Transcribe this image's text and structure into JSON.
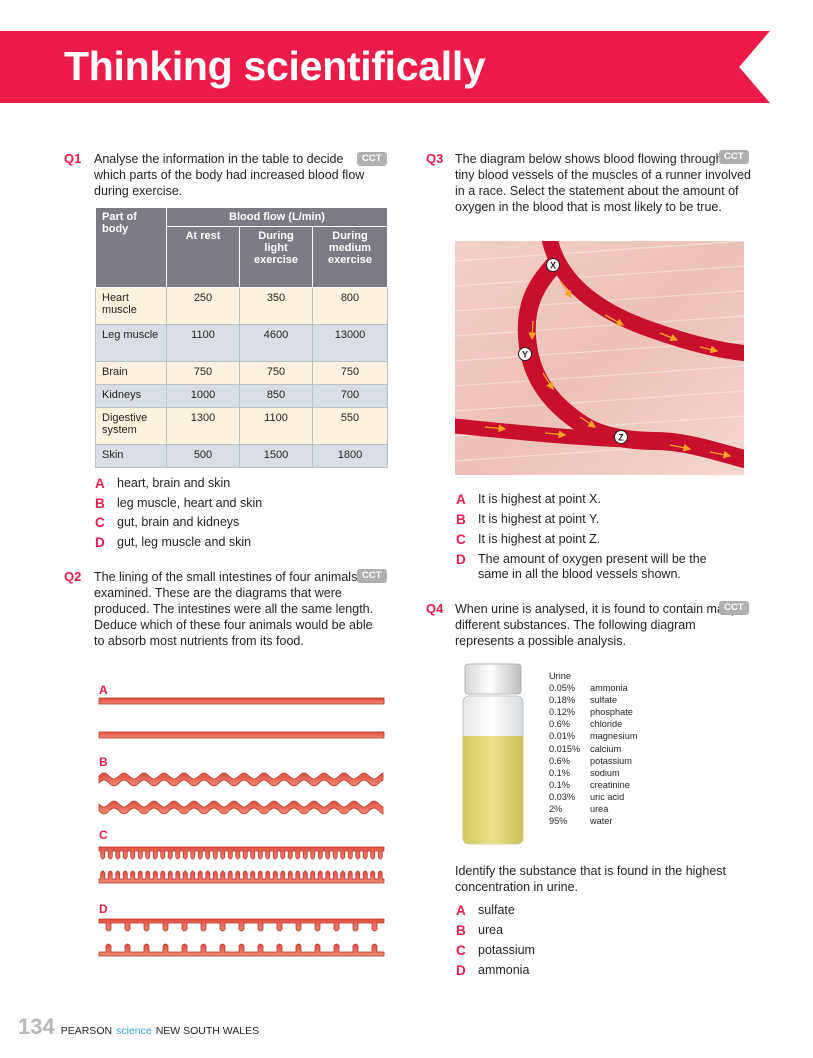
{
  "title": "Thinking scientifically",
  "q1": {
    "number": "Q1",
    "text": "Analyse the information in the table to decide which parts of the body had increased blood flow during exercise.",
    "badge": "CCT",
    "table": {
      "col_part": "Part of body",
      "col_group": "Blood flow (L/min)",
      "col_rest": "At rest",
      "col_light": "During light exercise",
      "col_medium": "During medium exercise",
      "rows": [
        {
          "part": "Heart muscle",
          "rest": "250",
          "light": "350",
          "medium": "800"
        },
        {
          "part": "Leg muscle",
          "rest": "1100",
          "light": "4600",
          "medium": "13000"
        },
        {
          "part": "Brain",
          "rest": "750",
          "light": "750",
          "medium": "750"
        },
        {
          "part": "Kidneys",
          "rest": "1000",
          "light": "850",
          "medium": "700"
        },
        {
          "part": "Digestive system",
          "rest": "1300",
          "light": "1100",
          "medium": "550"
        },
        {
          "part": "Skin",
          "rest": "500",
          "light": "1500",
          "medium": "1800"
        }
      ]
    },
    "options": [
      {
        "letter": "A",
        "text": "heart, brain and skin"
      },
      {
        "letter": "B",
        "text": "leg muscle, heart and skin"
      },
      {
        "letter": "C",
        "text": "gut, brain and kidneys"
      },
      {
        "letter": "D",
        "text": "gut, leg muscle and skin"
      }
    ]
  },
  "q2": {
    "number": "Q2",
    "text": "The lining of the small intestines of four animals was examined. These are the diagrams that were produced. The intestines were all the same length. Deduce which of these four animals would be able to absorb most nutrients from its food.",
    "badge": "CCT",
    "labels": [
      "A",
      "B",
      "C",
      "D"
    ]
  },
  "q3": {
    "number": "Q3",
    "text": "The diagram below shows blood flowing through the tiny blood vessels of the muscles of a runner involved in a race. Select the statement about the amount of oxygen in the blood that is most likely to be true.",
    "badge": "CCT",
    "points": [
      "X",
      "Y",
      "Z"
    ],
    "options": [
      {
        "letter": "A",
        "text": "It is highest at point X."
      },
      {
        "letter": "B",
        "text": "It is highest at point Y."
      },
      {
        "letter": "C",
        "text": "It is highest at point Z."
      },
      {
        "letter": "D",
        "text": "The amount of oxygen present will be the same in all the blood vessels shown."
      }
    ]
  },
  "q4": {
    "number": "Q4",
    "text": "When urine is analysed, it is found to contain many different substances. The following diagram represents a possible analysis.",
    "badge": "CCT",
    "urine_title": "Urine",
    "urine": [
      {
        "pct": "0.05%",
        "name": "ammonia"
      },
      {
        "pct": "0.18%",
        "name": "sulfate"
      },
      {
        "pct": "0.12%",
        "name": "phosphate"
      },
      {
        "pct": "0.6%",
        "name": "chloride"
      },
      {
        "pct": "0.01%",
        "name": "magnesium"
      },
      {
        "pct": "0.015%",
        "name": "calcium"
      },
      {
        "pct": "0.6%",
        "name": "potassium"
      },
      {
        "pct": "0.1%",
        "name": "sodium"
      },
      {
        "pct": "0.1%",
        "name": "creatinine"
      },
      {
        "pct": "0.03%",
        "name": "uric acid"
      },
      {
        "pct": "2%",
        "name": "urea"
      },
      {
        "pct": "95%",
        "name": "water"
      }
    ],
    "prompt": "Identify the substance that is found in the highest concentration in urine.",
    "options": [
      {
        "letter": "A",
        "text": "sulfate"
      },
      {
        "letter": "B",
        "text": "urea"
      },
      {
        "letter": "C",
        "text": "potassium"
      },
      {
        "letter": "D",
        "text": "ammonia"
      }
    ]
  },
  "footer": {
    "page": "134",
    "brand_a": "PEARSON",
    "brand_b": "science",
    "brand_c": "NEW SOUTH WALES"
  },
  "colors": {
    "accent": "#ec1c4a",
    "vessel": "#c8102e",
    "arrow": "#f6a623",
    "urine": "#e3d87a"
  }
}
